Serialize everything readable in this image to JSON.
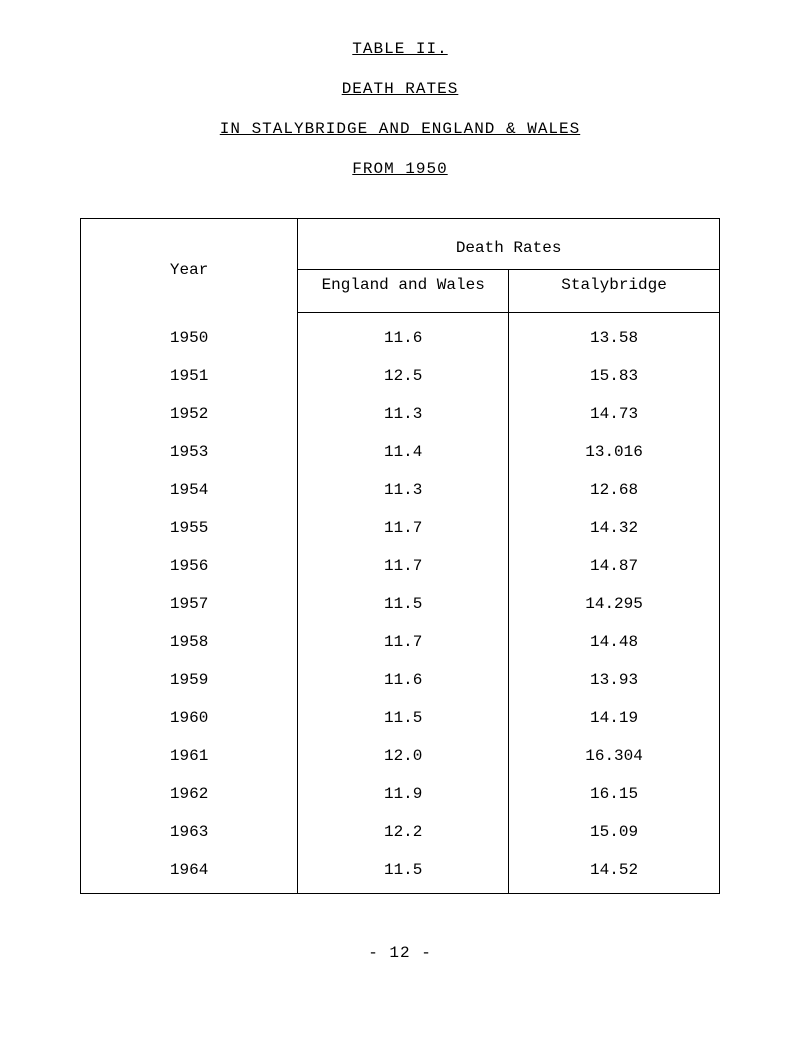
{
  "headers": {
    "h1": "TABLE II.",
    "h2": "DEATH   RATES",
    "h3": "IN STALYBRIDGE AND ENGLAND & WALES",
    "h4": "FROM 1950"
  },
  "table": {
    "col_year": "Year",
    "col_rates": "Death     Rates",
    "col_ew": "England and Wales",
    "col_sb": "Stalybridge",
    "rows": [
      {
        "year": "1950",
        "ew": "11.6",
        "sb": "13.58"
      },
      {
        "year": "1951",
        "ew": "12.5",
        "sb": "15.83"
      },
      {
        "year": "1952",
        "ew": "11.3",
        "sb": "14.73"
      },
      {
        "year": "1953",
        "ew": "11.4",
        "sb": "13.016"
      },
      {
        "year": "1954",
        "ew": "11.3",
        "sb": "12.68"
      },
      {
        "year": "1955",
        "ew": "11.7",
        "sb": "14.32"
      },
      {
        "year": "1956",
        "ew": "11.7",
        "sb": "14.87"
      },
      {
        "year": "1957",
        "ew": "11.5",
        "sb": "14.295"
      },
      {
        "year": "1958",
        "ew": "11.7",
        "sb": "14.48"
      },
      {
        "year": "1959",
        "ew": "11.6",
        "sb": "13.93"
      },
      {
        "year": "1960",
        "ew": "11.5",
        "sb": "14.19"
      },
      {
        "year": "1961",
        "ew": "12.0",
        "sb": "16.304"
      },
      {
        "year": "1962",
        "ew": "11.9",
        "sb": "16.15"
      },
      {
        "year": "1963",
        "ew": "12.2",
        "sb": "15.09"
      },
      {
        "year": "1964",
        "ew": "11.5",
        "sb": "14.52"
      }
    ]
  },
  "footer": "- 12 -"
}
